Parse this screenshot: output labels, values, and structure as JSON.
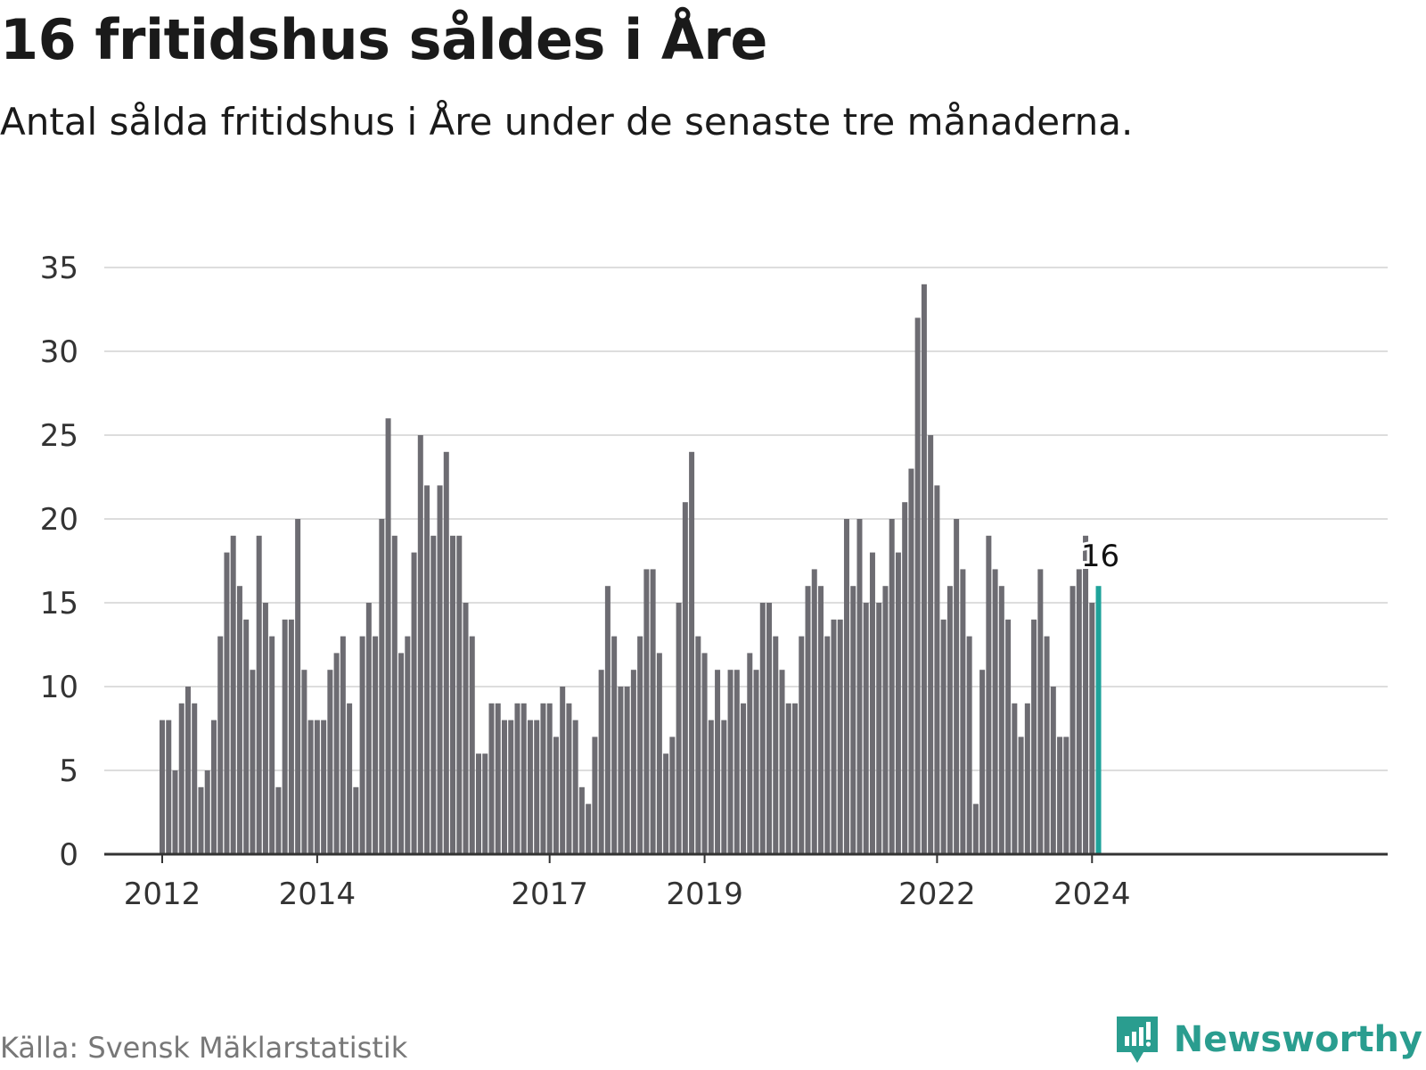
{
  "title": "16 fritidshus såldes i Åre",
  "subtitle": "Antal sålda fritidshus i Åre under de senaste tre månaderna.",
  "source": "Källa: Svensk Mäklarstatistik",
  "brand": "Newsworthy",
  "colors": {
    "bar": "#6d6c72",
    "highlight": "#1fa39a",
    "grid": "#dddddd",
    "axis": "#333333",
    "brand": "#2a9d8f"
  },
  "chart_data": {
    "type": "bar",
    "title": "16 fritidshus såldes i Åre",
    "xlabel": "",
    "ylabel": "",
    "ylim": [
      0,
      35
    ],
    "yticks": [
      0,
      5,
      10,
      15,
      20,
      25,
      30,
      35
    ],
    "xticks": [
      {
        "label": "2012",
        "index": 0
      },
      {
        "label": "2014",
        "index": 24
      },
      {
        "label": "2017",
        "index": 60
      },
      {
        "label": "2019",
        "index": 84
      },
      {
        "label": "2022",
        "index": 120
      },
      {
        "label": "2024",
        "index": 144
      }
    ],
    "series": [
      {
        "name": "Antal sålda fritidshus",
        "start": "2012-01",
        "values": [
          8,
          8,
          5,
          9,
          10,
          9,
          4,
          5,
          8,
          13,
          18,
          19,
          16,
          14,
          11,
          19,
          15,
          13,
          4,
          14,
          14,
          20,
          11,
          8,
          8,
          8,
          11,
          12,
          13,
          9,
          4,
          13,
          15,
          13,
          20,
          26,
          19,
          12,
          13,
          18,
          25,
          22,
          19,
          22,
          24,
          19,
          19,
          15,
          13,
          6,
          6,
          9,
          9,
          8,
          8,
          9,
          9,
          8,
          8,
          9,
          9,
          7,
          10,
          9,
          8,
          4,
          3,
          7,
          11,
          16,
          13,
          10,
          10,
          11,
          13,
          17,
          17,
          12,
          6,
          7,
          15,
          21,
          24,
          13,
          12,
          8,
          11,
          8,
          11,
          11,
          9,
          12,
          11,
          15,
          15,
          13,
          11,
          9,
          9,
          13,
          16,
          17,
          16,
          13,
          14,
          14,
          20,
          16,
          20,
          15,
          18,
          15,
          16,
          20,
          18,
          21,
          23,
          32,
          34,
          25,
          22,
          14,
          16,
          20,
          17,
          13,
          3,
          11,
          19,
          17,
          16,
          14,
          9,
          7,
          9,
          14,
          17,
          13,
          10,
          7,
          7,
          16,
          17,
          19,
          15,
          16
        ]
      }
    ],
    "highlight": {
      "label": "16",
      "value": 16
    }
  }
}
